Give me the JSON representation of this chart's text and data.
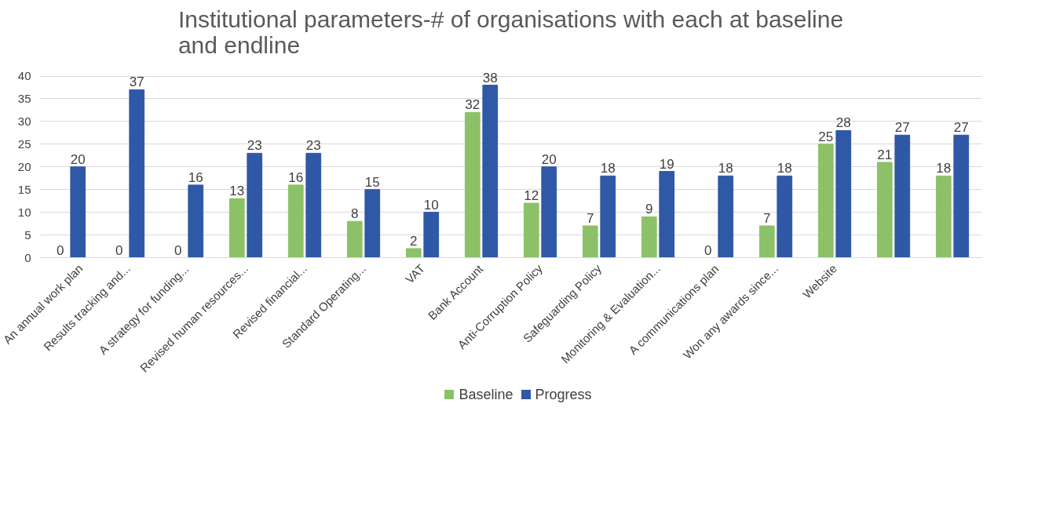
{
  "chart_data": {
    "type": "bar",
    "title": "Institutional parameters-# of organisations with each at baseline and endline",
    "categories": [
      "An annual work plan",
      "Results tracking and...",
      "A strategy for funding...",
      "Revised human resources...",
      "Revised financial...",
      "Standard Operating...",
      "VAT",
      "Bank Account",
      "Anti-Corruption Policy",
      "Safeguarding Policy",
      "Monitoring & Evaluation...",
      "A communications plan",
      "Won any awards since...",
      "Website",
      null,
      null
    ],
    "series": [
      {
        "name": "Baseline",
        "color": "#8cc168",
        "values": [
          0,
          0,
          0,
          13,
          16,
          8,
          2,
          32,
          12,
          7,
          9,
          0,
          7,
          25,
          21,
          18
        ]
      },
      {
        "name": "Progress",
        "color": "#2f58a6",
        "values": [
          20,
          37,
          16,
          23,
          23,
          15,
          10,
          38,
          20,
          18,
          19,
          18,
          18,
          28,
          27,
          27
        ]
      }
    ],
    "ylim": [
      0,
      40
    ],
    "yticks": [
      0,
      5,
      10,
      15,
      20,
      25,
      30,
      35,
      40
    ],
    "grid": "y",
    "legend": "bottom",
    "data_labels": true
  }
}
